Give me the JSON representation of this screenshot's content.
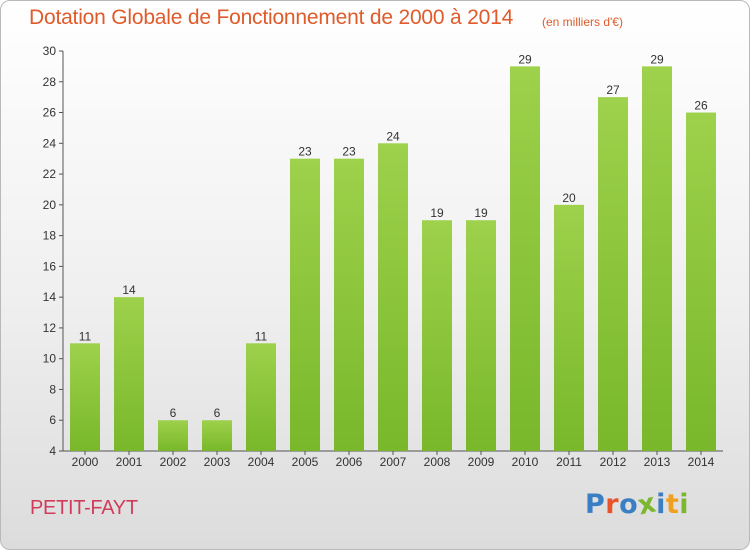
{
  "chart_data": {
    "type": "bar",
    "title": "Dotation Globale de Fonctionnement de 2000 à 2014",
    "subtitle": "(en milliers d'€)",
    "categories": [
      "2000",
      "2001",
      "2002",
      "2003",
      "2004",
      "2005",
      "2006",
      "2007",
      "2008",
      "2009",
      "2010",
      "2011",
      "2012",
      "2013",
      "2014"
    ],
    "values": [
      11,
      14,
      6,
      6,
      11,
      23,
      23,
      24,
      19,
      19,
      29,
      20,
      27,
      29,
      26
    ],
    "ylim": [
      4,
      30
    ],
    "yticks": [
      4,
      6,
      8,
      10,
      12,
      14,
      16,
      18,
      20,
      22,
      24,
      26,
      28,
      30
    ],
    "grid": false,
    "bar_color": "#78b82a",
    "bar_color_light": "#9ed14c"
  },
  "footer": {
    "commune": "PETIT-FAYT",
    "logo_text": "Proxiti",
    "logo_colors": [
      "#3a7fc4",
      "#e8532a",
      "#3a7fc4",
      "#7cb82f",
      "#3a7fc4",
      "#f0a01e",
      "#7cb82f"
    ]
  },
  "colors": {
    "title": "#e05a2a",
    "commune": "#d13c5b"
  }
}
